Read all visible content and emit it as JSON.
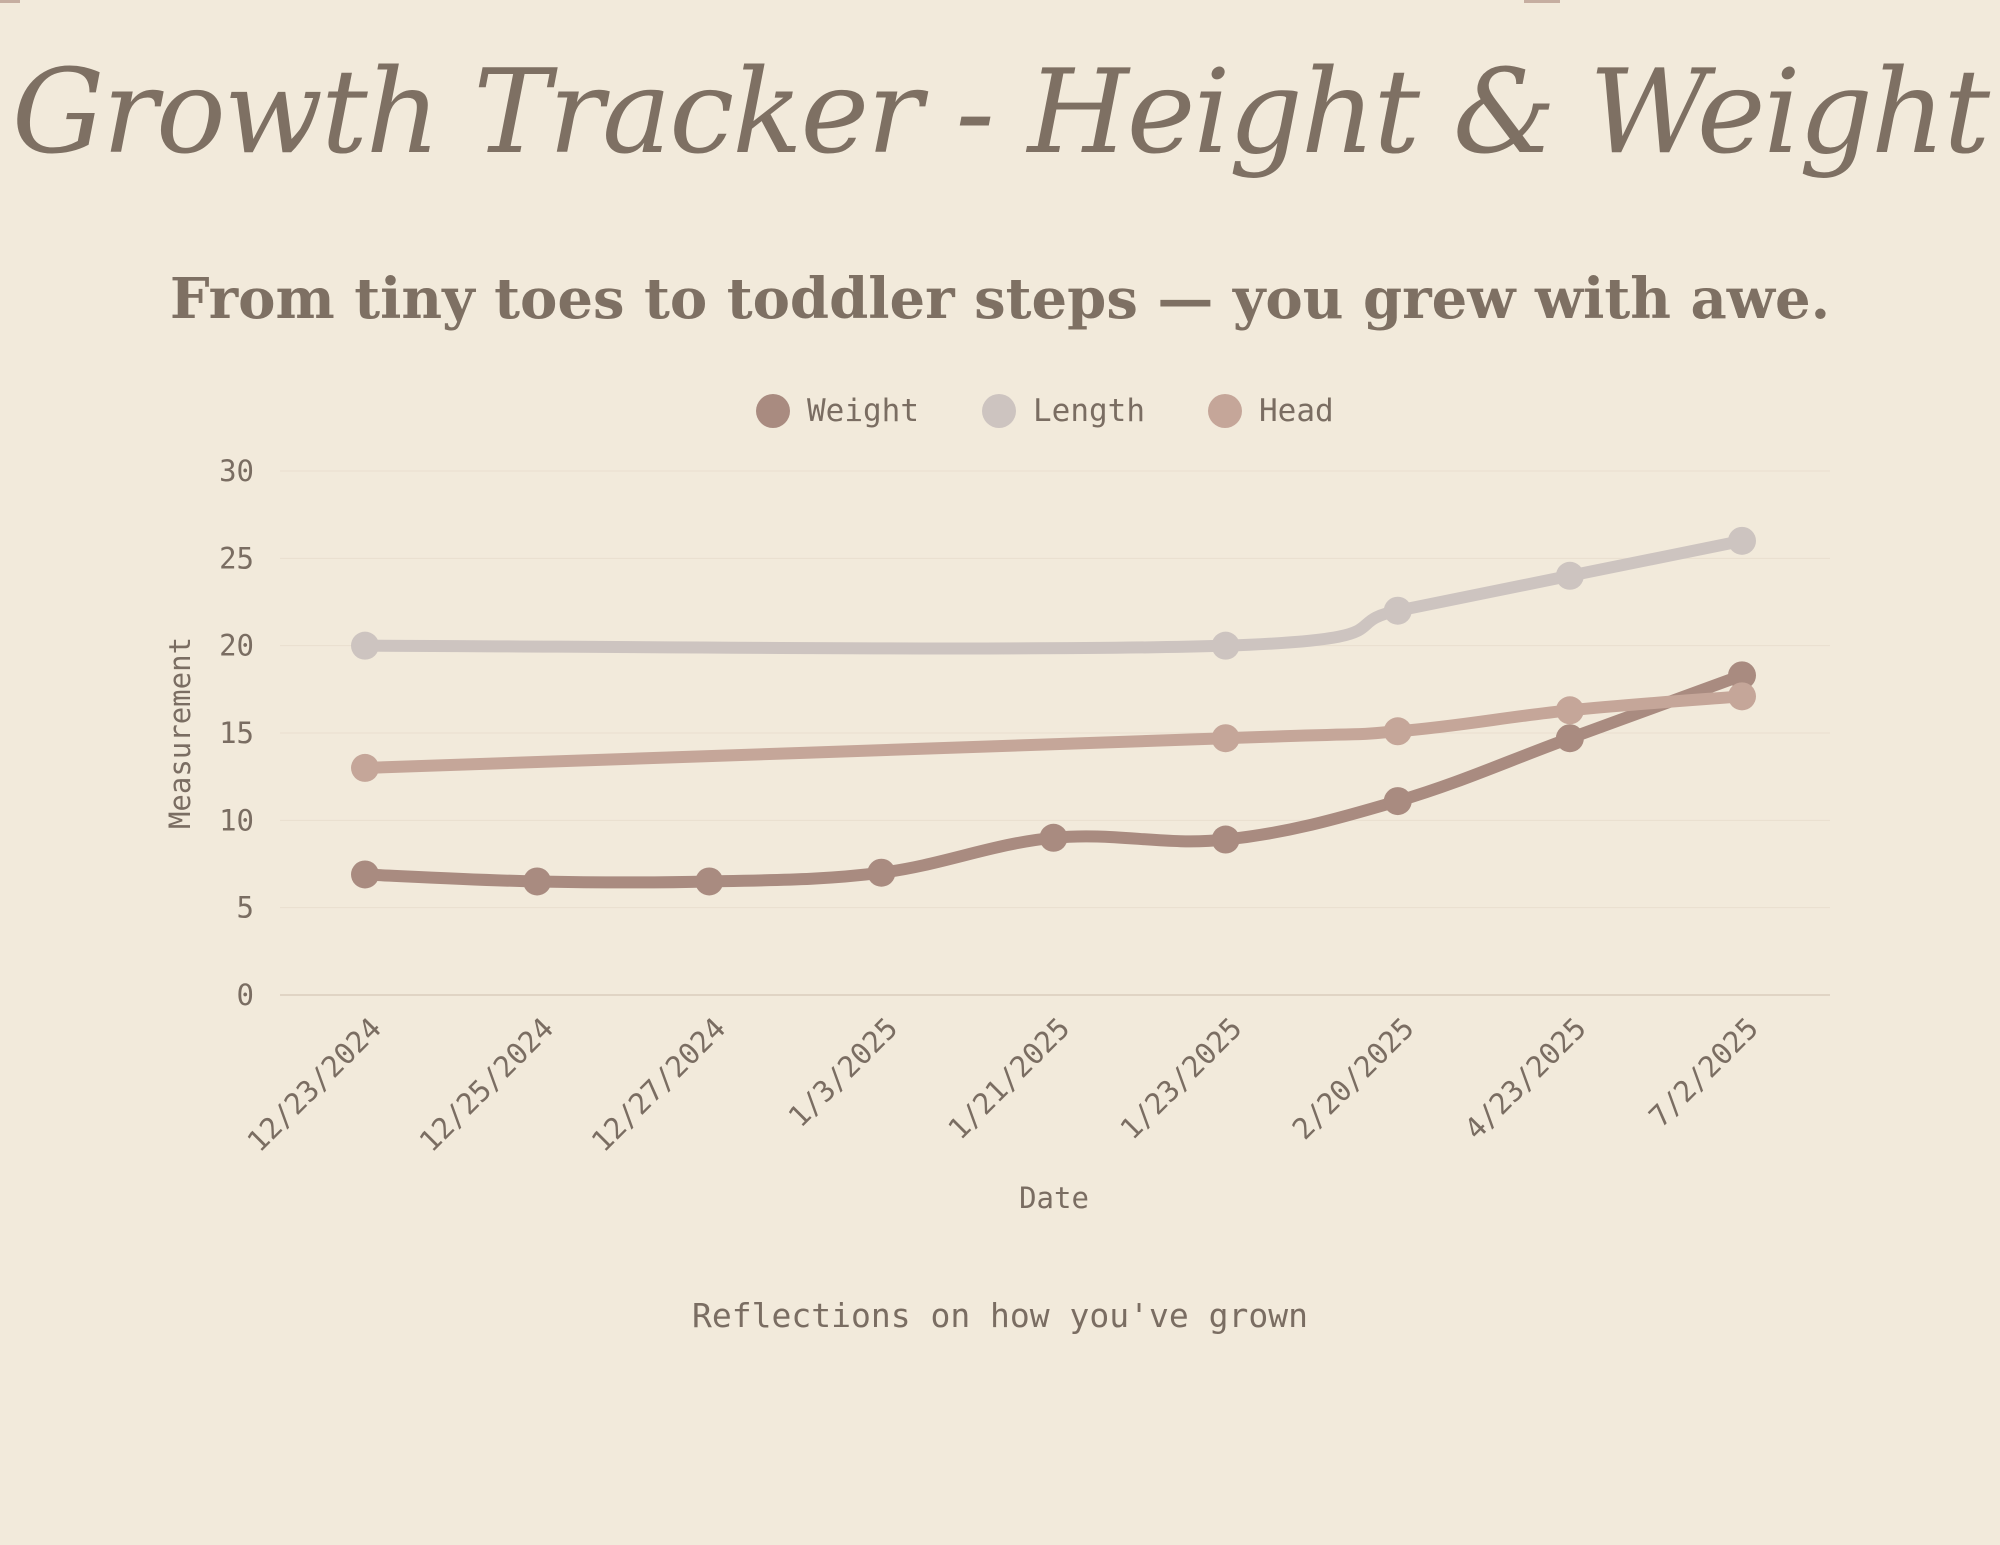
{
  "header": {
    "title": "Growth Tracker - Height & Weight",
    "subtitle": "From tiny toes to toddler steps — you grew with awe."
  },
  "footer": {
    "note": "Reflections on how you've grown"
  },
  "colors": {
    "background": "#f2eadb",
    "text": "#7a6d62",
    "gridline": "#e9dfcf",
    "baseline": "#d9cdbd"
  },
  "chart_data": {
    "type": "line",
    "title": "Growth Tracker - Height & Weight",
    "subtitle": "From tiny toes to toddler steps — you grew with awe.",
    "xlabel": "Date",
    "ylabel": "Measurement",
    "categories": [
      "12/23/2024",
      "12/25/2024",
      "12/27/2024",
      "1/3/2025",
      "1/21/2025",
      "1/23/2025",
      "2/20/2025",
      "4/23/2025",
      "7/2/2025"
    ],
    "ylim": [
      0,
      30
    ],
    "yticks": [
      0,
      5,
      10,
      15,
      20,
      25,
      30
    ],
    "grid": true,
    "legend_position": "top-center",
    "smooth": true,
    "series": [
      {
        "name": "Weight",
        "color": "#a98b80",
        "values": [
          6.9,
          6.5,
          6.5,
          7.0,
          9.0,
          8.9,
          11.1,
          14.7,
          18.3
        ]
      },
      {
        "name": "Length",
        "color": "#cdc4c0",
        "values": [
          20.0,
          null,
          null,
          null,
          null,
          20.0,
          22.0,
          24.0,
          26.0
        ]
      },
      {
        "name": "Head",
        "color": "#c5a699",
        "values": [
          13.0,
          null,
          null,
          null,
          null,
          14.7,
          15.1,
          16.3,
          17.1
        ]
      }
    ]
  }
}
